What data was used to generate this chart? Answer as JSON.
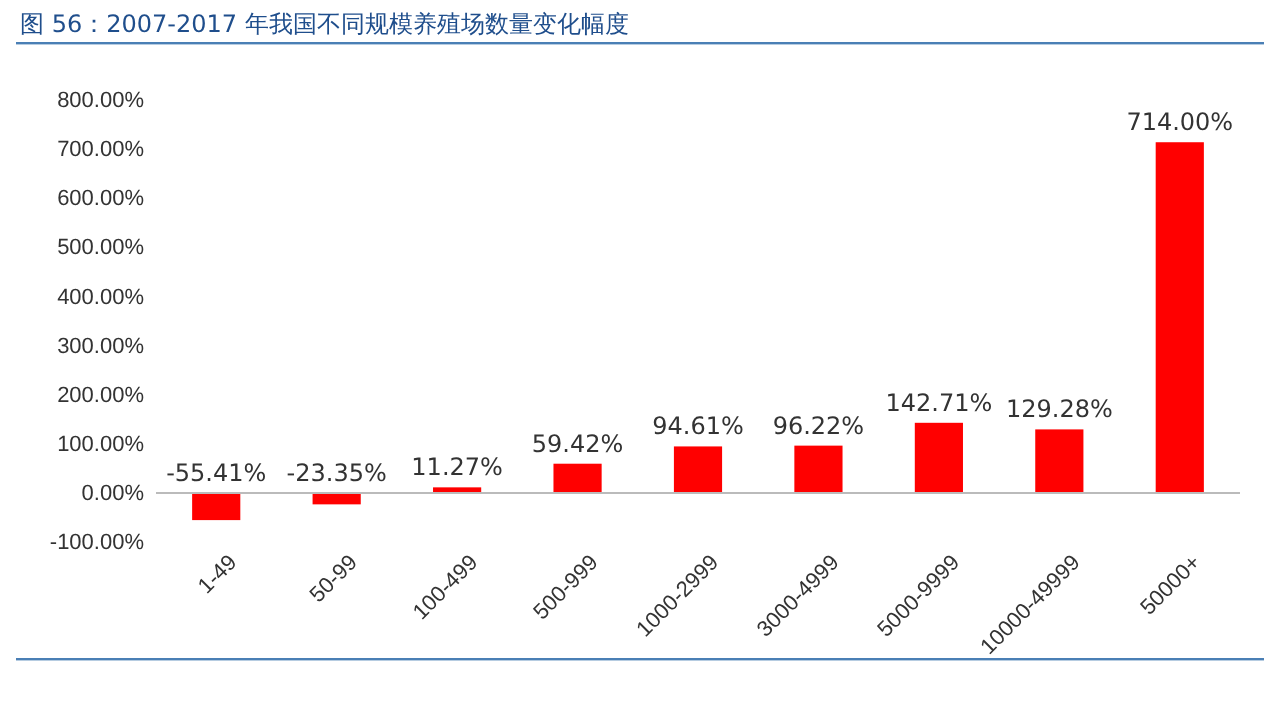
{
  "chart_data": {
    "type": "bar",
    "title": "图 56：2007-2017 年我国不同规模养殖场数量变化幅度",
    "categories": [
      "1-49",
      "50-99",
      "100-499",
      "500-999",
      "1000-2999",
      "3000-4999",
      "5000-9999",
      "10000-49999",
      "50000+"
    ],
    "values": [
      -55.41,
      -23.35,
      11.27,
      59.42,
      94.61,
      96.22,
      142.71,
      129.28,
      714.0
    ],
    "value_labels": [
      "-55.41%",
      "-23.35%",
      "11.27%",
      "59.42%",
      "94.61%",
      "96.22%",
      "142.71%",
      "129.28%",
      "714.00%"
    ],
    "color": "#ff0000",
    "ylim": [
      -100,
      800
    ],
    "yticks": [
      {
        "value": -100,
        "label": "-100.00%"
      },
      {
        "value": 0,
        "label": "0.00%"
      },
      {
        "value": 100,
        "label": "100.00%"
      },
      {
        "value": 200,
        "label": "200.00%"
      },
      {
        "value": 300,
        "label": "300.00%"
      },
      {
        "value": 400,
        "label": "400.00%"
      },
      {
        "value": 500,
        "label": "500.00%"
      },
      {
        "value": 600,
        "label": "600.00%"
      },
      {
        "value": 700,
        "label": "700.00%"
      },
      {
        "value": 800,
        "label": "800.00%"
      }
    ]
  }
}
